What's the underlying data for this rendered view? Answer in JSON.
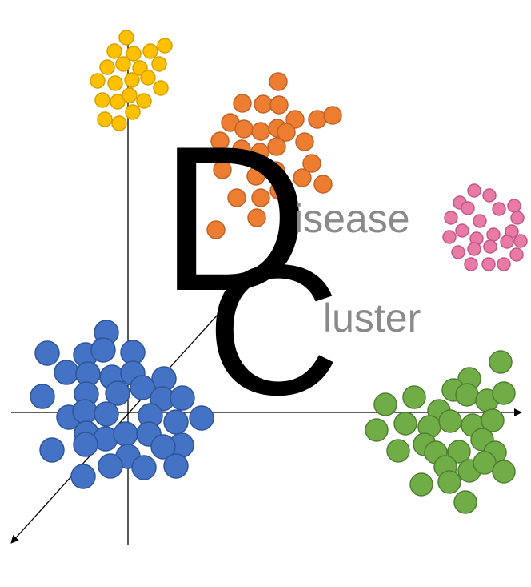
{
  "logo": {
    "initial_d": "D",
    "rest_d": "isease",
    "initial_c": "C",
    "rest_c": "luster"
  },
  "colors": {
    "yellow": "#FFC000",
    "yellow_stroke": "#D4A000",
    "orange": "#ED7D31",
    "orange_stroke": "#C0622A",
    "pink": "#E97AA5",
    "pink_stroke": "#C0578A",
    "blue": "#4472C4",
    "blue_stroke": "#2F5597",
    "green": "#70AD47",
    "green_stroke": "#507E32",
    "axis": "#000000",
    "letter_big": "#000000",
    "letter_small": "#8a8a8a"
  },
  "icons": {
    "axes": "3d-axes-icon",
    "clusters": "dot-cluster-icon"
  }
}
